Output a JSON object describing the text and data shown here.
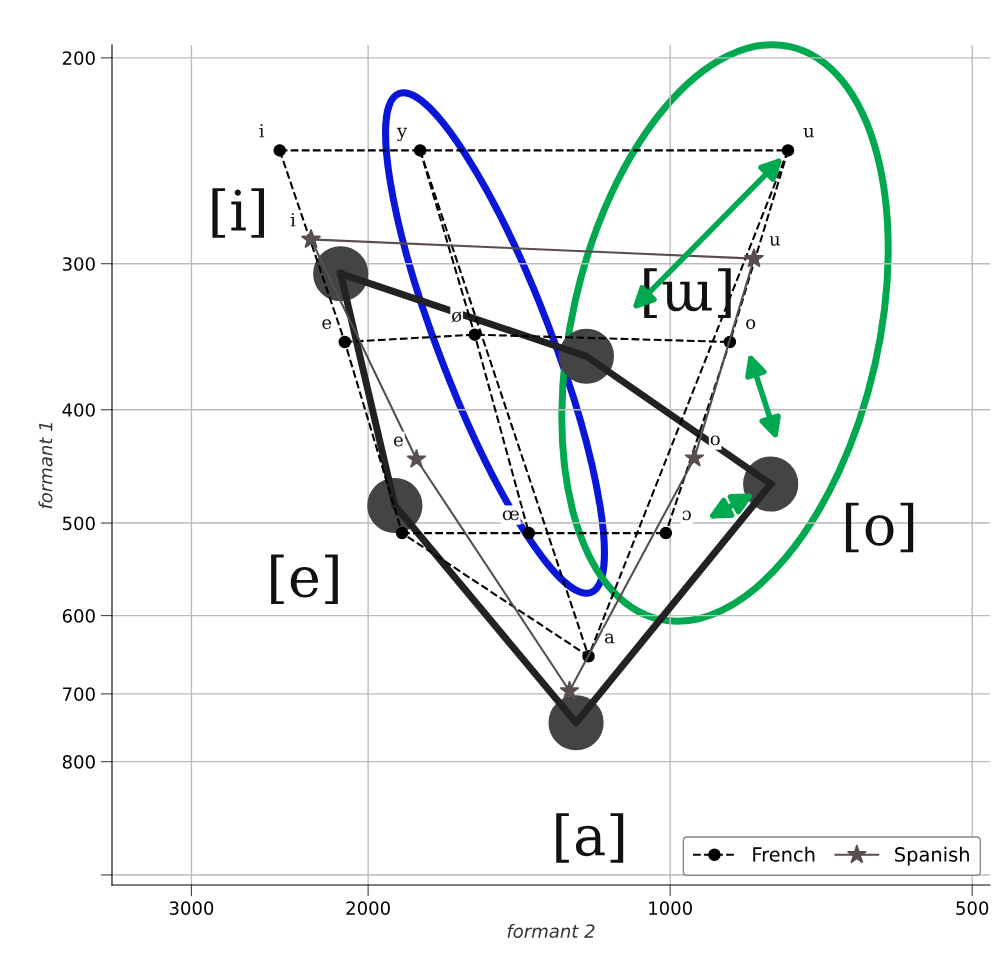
{
  "chart_data": {
    "type": "line",
    "xlabel": "formant 2",
    "ylabel": "formant 1",
    "log": "xy",
    "xlim": [
      3600,
      480
    ],
    "xticks": [
      3000,
      2000,
      1000,
      500
    ],
    "ylim": [
      1020,
      195
    ],
    "yticks": [
      200,
      300,
      400,
      500,
      600,
      700,
      800,
      {
        "value": 1000,
        "label": null
      }
    ],
    "grid": true,
    "legend": "bottom right",
    "series": [
      {
        "name": "French",
        "color": "#000000",
        "line_style": "dashed",
        "marker": "circle",
        "x": [
          2450,
          2110,
          1850,
          1206
        ],
        "values": [
          240,
          350,
          510,
          650
        ]
      },
      {
        "color": "#000000",
        "line_style": "dashed",
        "marker": "circle",
        "x": [
          1775,
          1566,
          1383
        ],
        "values": [
          240,
          345,
          510
        ]
      },
      {
        "color": "#000000",
        "line_style": "dashed",
        "marker": "circle",
        "x": [
          763,
          872,
          1010
        ],
        "values": [
          240,
          350,
          510
        ]
      },
      {
        "color": "#000000",
        "line_style": "dashed",
        "marker": "none",
        "x": [
          2450,
          1775,
          763
        ],
        "values": [
          240,
          240,
          240
        ]
      },
      {
        "color": "#000000",
        "line_style": "dashed",
        "marker": "none",
        "x": [
          2110,
          1566,
          872
        ],
        "values": [
          350,
          345,
          350
        ]
      },
      {
        "color": "#000000",
        "line_style": "dashed",
        "marker": "none",
        "x": [
          1850,
          1383,
          1010
        ],
        "values": [
          510,
          510,
          510
        ]
      },
      {
        "color": "#000000",
        "line_style": "dashed",
        "marker": "none",
        "x": [
          1775,
          1206
        ],
        "values": [
          240,
          650
        ]
      },
      {
        "color": "#000000",
        "line_style": "dashed",
        "marker": "none",
        "x": [
          763,
          1206
        ],
        "values": [
          240,
          650
        ]
      },
      {
        "name": "Spanish",
        "color": "#5a4d4d",
        "line_style": "solid",
        "marker": "star",
        "x": [
          2280,
          1790,
          1260,
          946,
          825
        ],
        "values": [
          286,
          441,
          696,
          440,
          297
        ]
      },
      {
        "color": "#5a4d4d",
        "line_style": "solid",
        "marker": "star",
        "x": [
          825,
          2280
        ],
        "values": [
          297,
          286
        ]
      },
      {
        "color": "#222222",
        "line_style": "solid",
        "marker": "none",
        "x": [
          2130,
          1881,
          1241,
          794
        ],
        "values": [
          306,
          483,
          741,
          463
        ]
      },
      {
        "color": "#222222",
        "line_style": "solid",
        "marker": "none",
        "x": [
          794,
          1212,
          2130
        ],
        "values": [
          463,
          360,
          306
        ]
      },
      {
        "color": "#444444",
        "type": "bubble",
        "x": [
          2130,
          1881,
          1241,
          794,
          1212
        ],
        "values": [
          306,
          483,
          741,
          463,
          360
        ],
        "sizes": [
          1,
          1,
          1,
          1,
          1
        ]
      }
    ],
    "annotations": [
      {
        "text": "i",
        "x": 2450,
        "y": 240
      },
      {
        "text": "y",
        "x": 1775,
        "y": 240
      },
      {
        "text": "u",
        "x": 763,
        "y": 240
      },
      {
        "text": "e",
        "x": 2110,
        "y": 350
      },
      {
        "text": "ø",
        "x": 1566,
        "y": 345
      },
      {
        "text": "o",
        "x": 872,
        "y": 350
      },
      {
        "text": "œ",
        "x": 1383,
        "y": 510
      },
      {
        "text": "ɔ",
        "x": 1010,
        "y": 510
      },
      {
        "text": "a",
        "x": 1206,
        "y": 650
      },
      {
        "text": "i",
        "x": 2280,
        "y": 286
      },
      {
        "text": "u",
        "x": 825,
        "y": 297
      },
      {
        "text": "e",
        "x": 1790,
        "y": 441
      },
      {
        "text": "o",
        "x": 946,
        "y": 440
      },
      {
        "text": "[i]",
        "x": 2130,
        "y": 306
      },
      {
        "text": "[ɯ]",
        "x": 1212,
        "y": 360
      },
      {
        "text": "[e]",
        "x": 1881,
        "y": 483
      },
      {
        "text": "[o]",
        "x": 794,
        "y": 463
      },
      {
        "text": "[a]",
        "x": 1241,
        "y": 741
      }
    ]
  }
}
